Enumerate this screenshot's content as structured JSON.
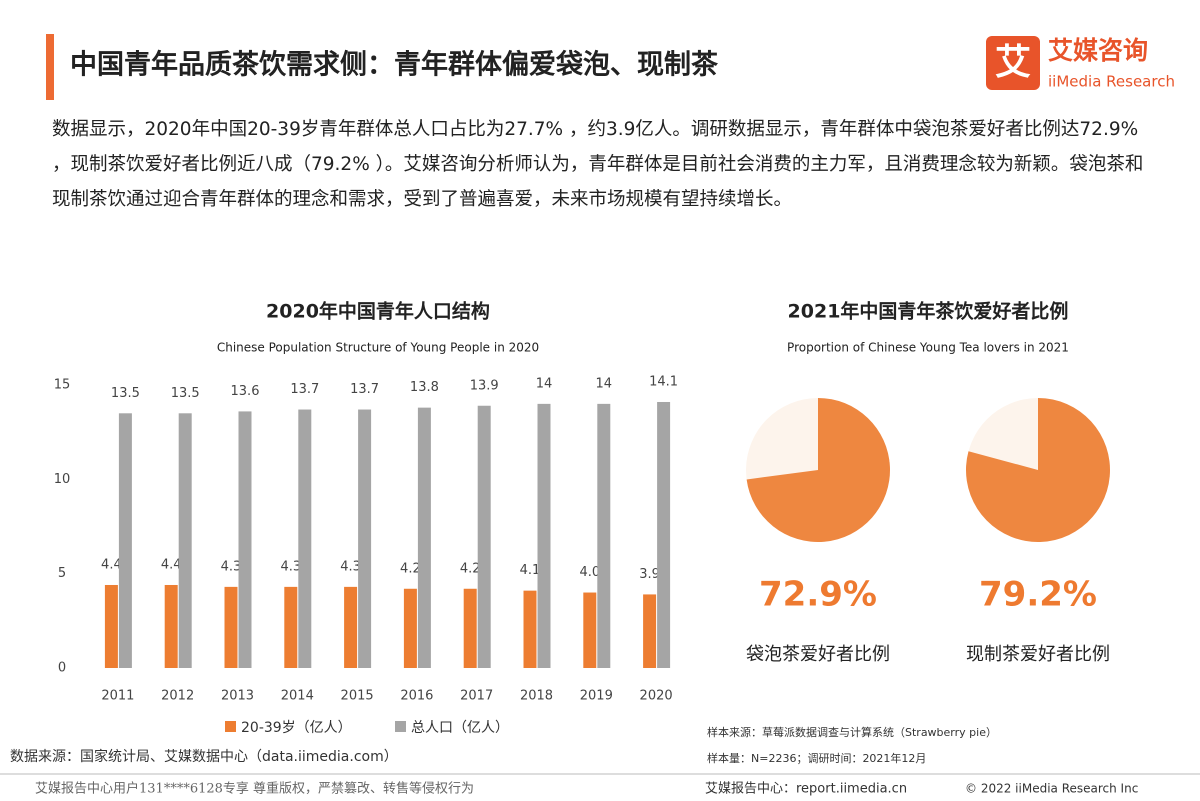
{
  "header": {
    "title": "中国青年品质茶饮需求侧：青年群体偏爱袋泡、现制茶",
    "logo_cn": "艾媒咨询",
    "logo_en": "iiMedia Research",
    "logo_mark": "艾"
  },
  "body_text": "数据显示，2020年中国20-39岁青年群体总人口占比为27.7% ，约3.9亿人。调研数据显示，青年群体中袋泡茶爱好者比例达72.9% ，现制茶饮爱好者比例近八成（79.2% ）。艾媒咨询分析师认为，青年群体是目前社会消费的主力军，且消费理念较为新颖。袋泡茶和现制茶饮通过迎合青年群体的理念和需求，受到了普遍喜爱，未来市场规模有望持续增长。",
  "chart_data": [
    {
      "type": "bar",
      "title": "2020年中国青年人口结构",
      "subtitle": "Chinese Population Structure of Young People in 2020",
      "categories": [
        "2011",
        "2012",
        "2013",
        "2014",
        "2015",
        "2016",
        "2017",
        "2018",
        "2019",
        "2020"
      ],
      "series": [
        {
          "name": "20-39岁（亿人）",
          "color": "#ed7d31",
          "values": [
            4.4,
            4.4,
            4.3,
            4.3,
            4.3,
            4.2,
            4.2,
            4.1,
            4.0,
            3.9
          ],
          "value_labels": [
            "4.4",
            "4.4",
            "4.3",
            "4.3",
            "4.3",
            "4.2",
            "4.2",
            "4.1",
            "4.0",
            "3.9"
          ]
        },
        {
          "name": "总人口（亿人）",
          "color": "#a5a5a5",
          "values": [
            13.5,
            13.5,
            13.6,
            13.7,
            13.7,
            13.8,
            13.9,
            14,
            14,
            14.1
          ]
        }
      ],
      "ylim": [
        0,
        15
      ],
      "yticks": [
        0,
        5,
        10,
        15
      ],
      "grid": false
    },
    {
      "type": "pie",
      "title": "2021年中国青年茶饮爱好者比例",
      "subtitle": "Proportion of Chinese Young Tea lovers in 2021",
      "background_color": "#fdf4ec",
      "series": [
        {
          "name": "袋泡茶爱好者比例",
          "color": "#ee8740",
          "values": [
            72.9
          ],
          "value_labels": [
            "72.9%"
          ]
        },
        {
          "name": "现制茶爱好者比例",
          "color": "#ee8740",
          "values": [
            79.2
          ],
          "value_labels": [
            "79.2%"
          ]
        }
      ]
    }
  ],
  "sources": {
    "left": "数据来源：国家统计局、艾媒数据中心（data.iimedia.com）",
    "sample_source": "样本来源：草莓派数据调查与计算系统（Strawberry pie）",
    "sample_size": "样本量：N=2236；调研时间：2021年12月"
  },
  "footer": {
    "notice": "艾媒报告中心用户131****6128专享 尊重版权，严禁篡改、转售等侵权行为",
    "site": "艾媒报告中心：report.iimedia.cn",
    "copyright": "© 2022 iiMedia Research Inc"
  }
}
